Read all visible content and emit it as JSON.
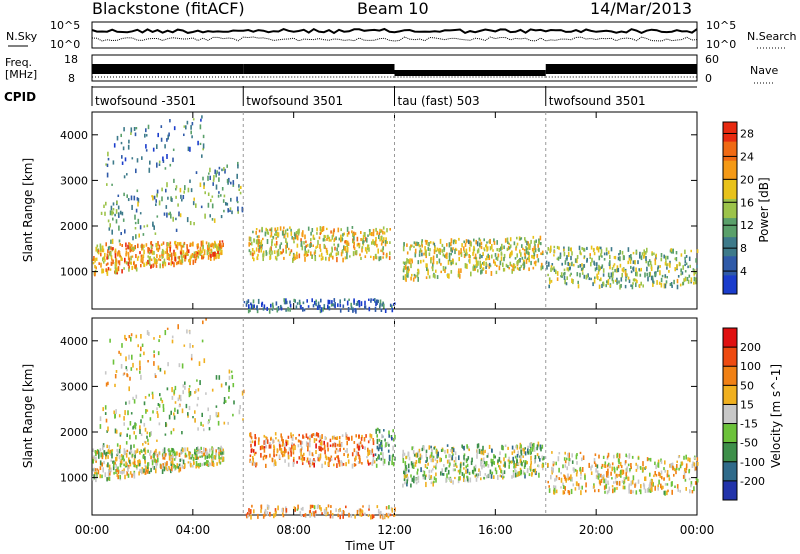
{
  "header": {
    "station": "Blackstone (fitACF)",
    "beam": "Beam 10",
    "date": "14/Mar/2013"
  },
  "strip_labels": {
    "nsky": "N.Sky",
    "nsearch": "N.Search",
    "freq_line1": "Freq.",
    "freq_line2": "[MHz]",
    "nave": "Nave",
    "cpid": "CPID",
    "ticks_left_top": [
      "10^5",
      "10^0"
    ],
    "ticks_right_top": [
      "10^5",
      "10^0"
    ],
    "ticks_left_freq": [
      "18",
      "8"
    ],
    "ticks_right_nave": [
      "60",
      "0"
    ]
  },
  "cpid_segments": [
    {
      "label": "twofsound -3501",
      "start_hour": 0,
      "end_hour": 6
    },
    {
      "label": "twofsound 3501",
      "start_hour": 6,
      "end_hour": 12
    },
    {
      "label": "tau (fast) 503",
      "start_hour": 12,
      "end_hour": 18
    },
    {
      "label": "twofsound 3501",
      "start_hour": 18,
      "end_hour": 24
    }
  ],
  "x_axis": {
    "label": "Time UT",
    "ticks": [
      "00:00",
      "04:00",
      "08:00",
      "12:00",
      "16:00",
      "20:00",
      "00:00"
    ]
  },
  "chart_data": [
    {
      "type": "heatmap",
      "title": "Power",
      "ylabel": "Slant Range [km]",
      "yticks": [
        "1000",
        "2000",
        "3000",
        "4000"
      ],
      "ylim": [
        180,
        4500
      ],
      "xlim_hours": [
        0,
        24
      ],
      "colorbar_label": "Power [dB]",
      "colorbar_ticks": [
        "4",
        "8",
        "12",
        "16",
        "20",
        "24",
        "28"
      ],
      "colorbar_range": [
        0,
        30
      ],
      "colors": [
        "#1a3ccc",
        "#2f5aa8",
        "#3d7a8a",
        "#5aa06a",
        "#9cc34a",
        "#e8c21a",
        "#f59a16",
        "#f06a14",
        "#e82a10"
      ],
      "bands": [
        {
          "t0": 0.0,
          "t1": 5.2,
          "r0": 950,
          "r1": 1650,
          "r1_end": 1700,
          "r0_end": 1350,
          "level": 0.7,
          "density": 0.9
        },
        {
          "t0": 0.3,
          "t1": 6.0,
          "r0": 1500,
          "r1": 2600,
          "r0_end": 2300,
          "r1_end": 3500,
          "level": 0.35,
          "density": 0.35
        },
        {
          "t0": 0.5,
          "t1": 4.5,
          "r0": 2800,
          "r1": 4100,
          "r0_end": 3600,
          "r1_end": 4500,
          "level": 0.25,
          "density": 0.22
        },
        {
          "t0": 6.2,
          "t1": 11.8,
          "r0": 1300,
          "r1": 2000,
          "r0_end": 1300,
          "r1_end": 2000,
          "level": 0.6,
          "density": 0.75
        },
        {
          "t0": 12.3,
          "t1": 17.9,
          "r0": 850,
          "r1": 1700,
          "r0_end": 1100,
          "r1_end": 1800,
          "level": 0.55,
          "density": 0.85
        },
        {
          "t0": 18.0,
          "t1": 24.0,
          "r0": 700,
          "r1": 1600,
          "r0_end": 700,
          "r1_end": 1500,
          "level": 0.45,
          "density": 0.7
        },
        {
          "t0": 6.0,
          "t1": 12.0,
          "r0": 180,
          "r1": 420,
          "r0_end": 180,
          "r1_end": 420,
          "level": 0.2,
          "density": 0.25
        }
      ]
    },
    {
      "type": "heatmap",
      "title": "Velocity",
      "ylabel": "Slant Range [km]",
      "yticks": [
        "1000",
        "2000",
        "3000",
        "4000"
      ],
      "ylim": [
        180,
        4500
      ],
      "xlim_hours": [
        0,
        24
      ],
      "colorbar_label": "Velocity [m s^-1]",
      "colorbar_ticks": [
        "200",
        "100",
        "50",
        "15",
        "-15",
        "-50",
        "-100",
        "-200"
      ],
      "colorbar_range": [
        -250,
        250
      ],
      "colors": [
        "#2233aa",
        "#2f6a8a",
        "#3d8f4a",
        "#6cc23a",
        "#c8c8c8",
        "#f0b020",
        "#f08014",
        "#ee4a10",
        "#e01010"
      ],
      "bands": [
        {
          "t0": 0.0,
          "t1": 5.2,
          "r0": 950,
          "r1": 1650,
          "r0_end": 1350,
          "r1_end": 1700,
          "level": 0.5,
          "density": 0.9
        },
        {
          "t0": 0.3,
          "t1": 6.0,
          "r0": 1500,
          "r1": 2600,
          "r0_end": 2300,
          "r1_end": 3500,
          "level": 0.45,
          "density": 0.35
        },
        {
          "t0": 0.5,
          "t1": 4.5,
          "r0": 2800,
          "r1": 4100,
          "r0_end": 3600,
          "r1_end": 4500,
          "level": 0.55,
          "density": 0.22
        },
        {
          "t0": 6.2,
          "t1": 11.2,
          "r0": 1300,
          "r1": 2000,
          "r0_end": 1300,
          "r1_end": 2000,
          "level": 0.7,
          "density": 0.75
        },
        {
          "t0": 11.2,
          "t1": 12.0,
          "r0": 1300,
          "r1": 2100,
          "r0_end": 1300,
          "r1_end": 2100,
          "level": 0.32,
          "density": 0.75
        },
        {
          "t0": 12.3,
          "t1": 17.9,
          "r0": 850,
          "r1": 1700,
          "r0_end": 1100,
          "r1_end": 1800,
          "level": 0.42,
          "density": 0.85
        },
        {
          "t0": 18.0,
          "t1": 24.0,
          "r0": 700,
          "r1": 1600,
          "r0_end": 700,
          "r1_end": 1500,
          "level": 0.55,
          "density": 0.7
        },
        {
          "t0": 6.0,
          "t1": 12.0,
          "r0": 180,
          "r1": 420,
          "r0_end": 180,
          "r1_end": 420,
          "level": 0.65,
          "density": 0.25
        }
      ]
    }
  ]
}
